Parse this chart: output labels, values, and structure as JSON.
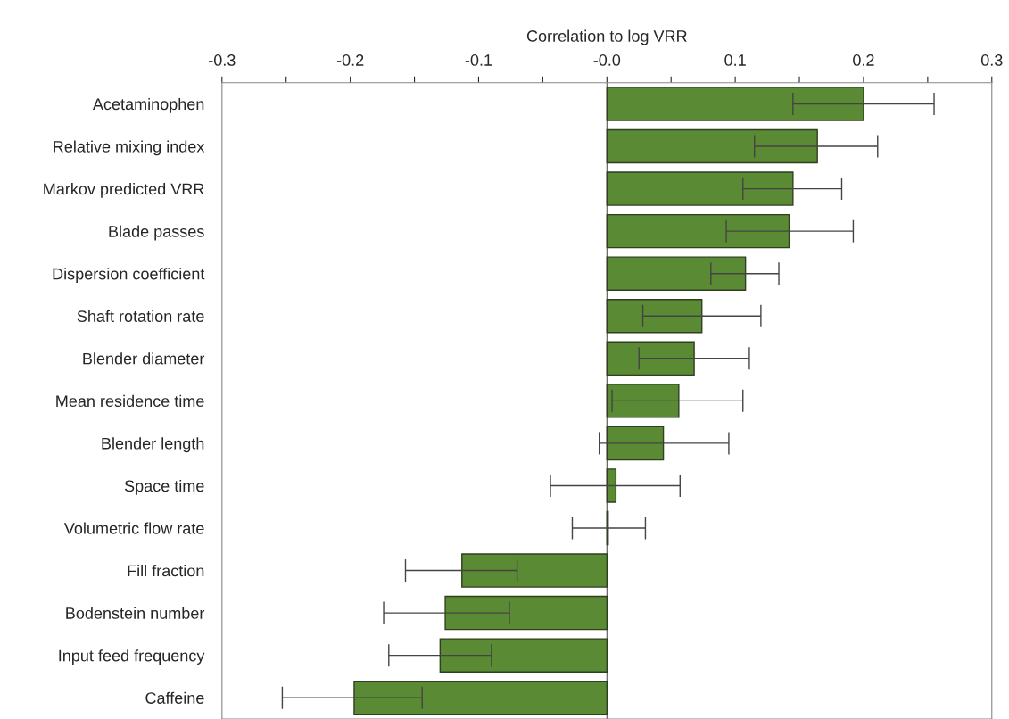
{
  "chart_data": {
    "type": "bar",
    "orientation": "horizontal",
    "xlabel": "Correlation to log VRR",
    "categories": [
      "Acetaminophen",
      "Relative mixing index",
      "Markov predicted VRR",
      "Blade passes",
      "Dispersion coefficient",
      "Shaft rotation rate",
      "Blender diameter",
      "Mean residence time",
      "Blender length",
      "Space time",
      "Volumetric flow rate",
      "Fill fraction",
      "Bodenstein number",
      "Input feed frequency",
      "Caffeine"
    ],
    "values": [
      0.2,
      0.164,
      0.145,
      0.142,
      0.108,
      0.074,
      0.068,
      0.056,
      0.044,
      0.007,
      0.001,
      -0.113,
      -0.126,
      -0.13,
      -0.197
    ],
    "errors": [
      [
        0.145,
        0.255
      ],
      [
        0.115,
        0.211
      ],
      [
        0.106,
        0.183
      ],
      [
        0.093,
        0.192
      ],
      [
        0.081,
        0.134
      ],
      [
        0.028,
        0.12
      ],
      [
        0.025,
        0.111
      ],
      [
        0.004,
        0.106
      ],
      [
        -0.006,
        0.095
      ],
      [
        -0.044,
        0.057
      ],
      [
        -0.027,
        0.03
      ],
      [
        -0.157,
        -0.07
      ],
      [
        -0.174,
        -0.076
      ],
      [
        -0.17,
        -0.09
      ],
      [
        -0.253,
        -0.144
      ]
    ],
    "color": "#5b8a34",
    "xlim": [
      -0.3,
      0.3
    ],
    "xticks": [
      -0.3,
      {
        "value": -0.25,
        "label": null
      },
      -0.2,
      {
        "value": -0.15,
        "label": null
      },
      -0.1,
      {
        "value": -0.05,
        "label": null
      },
      {
        "value": 0,
        "label": "-0.0"
      },
      {
        "value": 0.05,
        "label": null
      },
      0.1,
      {
        "value": 0.15,
        "label": null
      },
      0.2,
      {
        "value": 0.25,
        "label": null
      },
      0.3
    ],
    "ref_lines": [
      {
        "axis": "x",
        "value": 0,
        "color": "#555555"
      }
    ],
    "grid": false,
    "legend": false
  }
}
